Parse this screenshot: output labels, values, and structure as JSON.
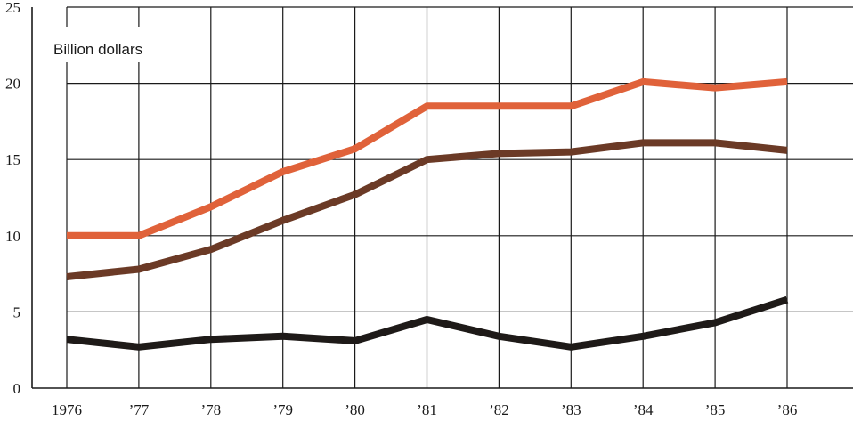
{
  "chart_data": {
    "type": "line",
    "x": [
      "1976",
      "’77",
      "’78",
      "’79",
      "’80",
      "’81",
      "’82",
      "’83",
      "’84",
      "’85",
      "’86"
    ],
    "ylabel": "Billion dollars",
    "ylim": [
      0,
      25
    ],
    "yticks": [
      "0",
      "5",
      "10",
      "15",
      "20",
      "25"
    ],
    "grid": true,
    "series": [
      {
        "color": "#e0623a",
        "values": [
          10.0,
          10.0,
          11.9,
          14.2,
          15.7,
          18.5,
          18.5,
          18.5,
          20.1,
          19.7,
          20.1
        ]
      },
      {
        "color": "#6b3a26",
        "values": [
          7.3,
          7.8,
          9.1,
          11.0,
          12.7,
          15.0,
          15.4,
          15.5,
          16.1,
          16.1,
          15.6
        ]
      },
      {
        "color": "#1e1a18",
        "values": [
          3.2,
          2.7,
          3.2,
          3.4,
          3.1,
          4.5,
          3.4,
          2.7,
          3.4,
          4.3,
          5.8
        ]
      }
    ]
  }
}
